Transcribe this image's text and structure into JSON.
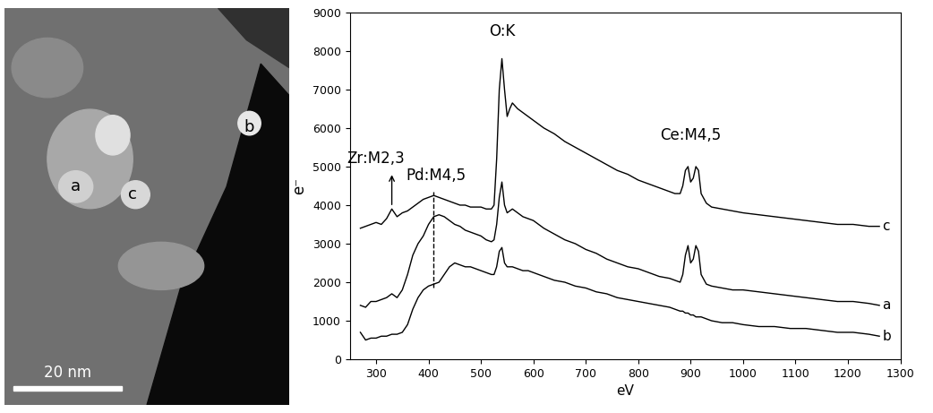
{
  "image": {
    "labels": [
      "a",
      "b",
      "c"
    ],
    "scale_bar": "20 nm"
  },
  "chart_data": {
    "type": "line",
    "x_label": "eV",
    "y_label": "e⁻",
    "x": [
      270,
      280,
      290,
      300,
      310,
      320,
      330,
      340,
      350,
      360,
      370,
      380,
      390,
      400,
      410,
      420,
      430,
      440,
      450,
      460,
      470,
      480,
      490,
      500,
      510,
      520,
      525,
      530,
      535,
      540,
      545,
      550,
      555,
      560,
      570,
      580,
      590,
      600,
      620,
      640,
      660,
      680,
      700,
      720,
      740,
      760,
      780,
      800,
      820,
      840,
      860,
      870,
      880,
      885,
      890,
      895,
      900,
      905,
      910,
      915,
      920,
      930,
      940,
      960,
      980,
      1000,
      1030,
      1060,
      1090,
      1120,
      1150,
      1180,
      1210,
      1240,
      1260
    ],
    "series": [
      {
        "name": "c",
        "color": "#000000",
        "values": [
          3400,
          3450,
          3500,
          3550,
          3500,
          3650,
          3900,
          3700,
          3800,
          3850,
          3950,
          4050,
          4150,
          4200,
          4250,
          4200,
          4150,
          4100,
          4050,
          4000,
          4000,
          3950,
          3950,
          3950,
          3900,
          3900,
          4000,
          5200,
          7000,
          7800,
          7000,
          6300,
          6500,
          6650,
          6500,
          6400,
          6300,
          6200,
          6000,
          5850,
          5650,
          5500,
          5350,
          5200,
          5050,
          4900,
          4800,
          4650,
          4550,
          4450,
          4350,
          4300,
          4300,
          4500,
          4900,
          5000,
          4600,
          4700,
          5000,
          4900,
          4300,
          4050,
          3950,
          3900,
          3850,
          3800,
          3750,
          3700,
          3650,
          3600,
          3550,
          3500,
          3500,
          3450,
          3450
        ]
      },
      {
        "name": "a",
        "color": "#000000",
        "values": [
          1400,
          1350,
          1500,
          1500,
          1550,
          1600,
          1700,
          1600,
          1800,
          2200,
          2700,
          3000,
          3200,
          3500,
          3700,
          3750,
          3700,
          3600,
          3500,
          3450,
          3350,
          3300,
          3250,
          3200,
          3100,
          3050,
          3100,
          3500,
          4200,
          4600,
          4000,
          3800,
          3850,
          3900,
          3800,
          3700,
          3650,
          3600,
          3400,
          3250,
          3100,
          3000,
          2850,
          2750,
          2600,
          2500,
          2400,
          2350,
          2250,
          2150,
          2100,
          2050,
          2000,
          2200,
          2700,
          2950,
          2500,
          2600,
          2950,
          2800,
          2200,
          1950,
          1900,
          1850,
          1800,
          1800,
          1750,
          1700,
          1650,
          1600,
          1550,
          1500,
          1500,
          1450,
          1400
        ]
      },
      {
        "name": "b",
        "color": "#000000",
        "values": [
          700,
          500,
          550,
          550,
          600,
          600,
          650,
          650,
          700,
          900,
          1300,
          1600,
          1800,
          1900,
          1950,
          2000,
          2200,
          2400,
          2500,
          2450,
          2400,
          2400,
          2350,
          2300,
          2250,
          2200,
          2200,
          2400,
          2800,
          2900,
          2500,
          2400,
          2400,
          2400,
          2350,
          2300,
          2300,
          2250,
          2150,
          2050,
          2000,
          1900,
          1850,
          1750,
          1700,
          1600,
          1550,
          1500,
          1450,
          1400,
          1350,
          1300,
          1250,
          1250,
          1200,
          1200,
          1150,
          1150,
          1100,
          1100,
          1100,
          1050,
          1000,
          950,
          950,
          900,
          850,
          850,
          800,
          800,
          750,
          700,
          700,
          650,
          600
        ]
      }
    ],
    "annotations": [
      {
        "text": "Zr:M2,3",
        "x": 300,
        "y": 5000,
        "arrow": {
          "x": 330,
          "y_from": 3950,
          "y_to": 4850
        }
      },
      {
        "text": "Pd:M4,5",
        "x": 415,
        "y": 4550,
        "line": {
          "x": 410,
          "y_from": 1850,
          "y_to": 4350
        }
      },
      {
        "text": "O:K",
        "x": 540,
        "y": 8300
      },
      {
        "text": "Ce:M4,5",
        "x": 900,
        "y": 5600
      }
    ],
    "xlim": [
      250,
      1300
    ],
    "ylim": [
      0,
      9000
    ],
    "xticks": [
      300,
      400,
      500,
      600,
      700,
      800,
      900,
      1000,
      1100,
      1200,
      1300
    ],
    "yticks": [
      0,
      1000,
      2000,
      3000,
      4000,
      5000,
      6000,
      7000,
      8000,
      9000
    ],
    "grid": false
  }
}
